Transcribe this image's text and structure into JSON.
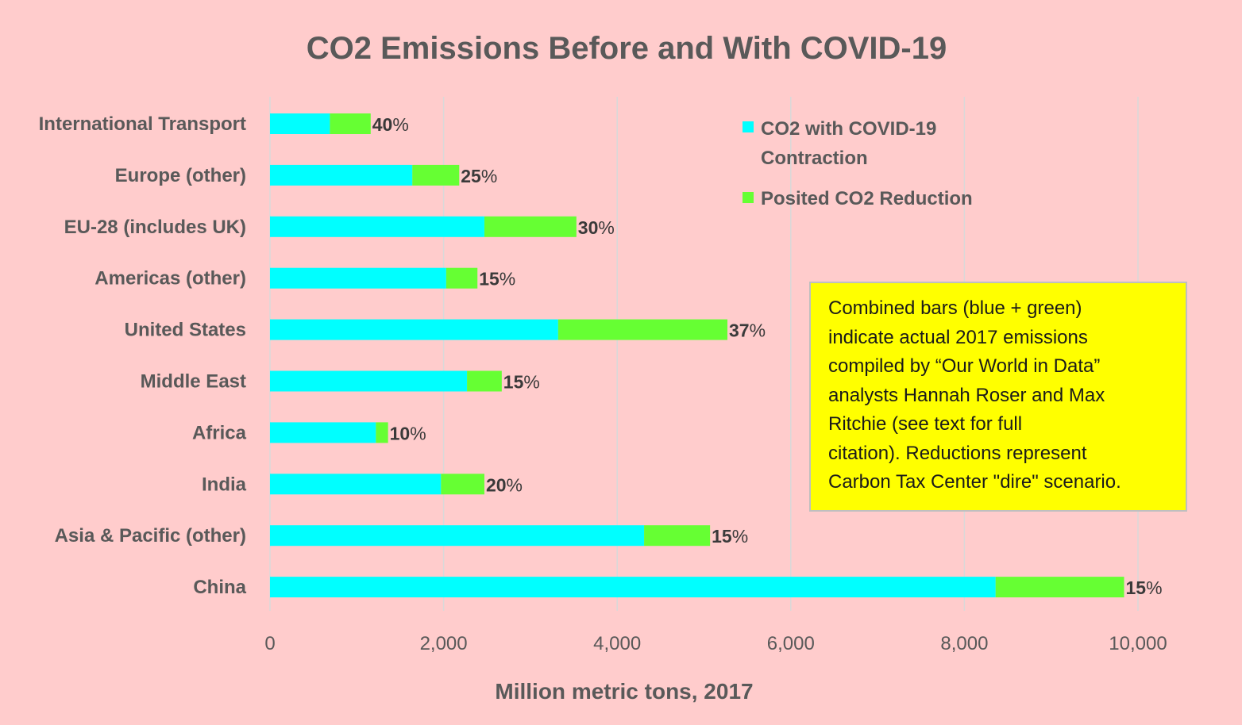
{
  "chart_data": {
    "type": "bar",
    "orientation": "horizontal",
    "stacked": true,
    "title": "CO2 Emissions Before and With COVID-19",
    "xlabel": "Million metric tons, 2017",
    "ylabel": "",
    "xlim": [
      0,
      10000
    ],
    "xticks": [
      0,
      2000,
      4000,
      6000,
      8000,
      10000
    ],
    "xtick_labels": [
      "0",
      "2,000",
      "4,000",
      "6,000",
      "8,000",
      "10,000"
    ],
    "grid": true,
    "legend_position": "top-right",
    "categories": [
      "International Transport",
      "Europe (other)",
      "EU-28 (includes UK)",
      "Americas (other)",
      "United States",
      "Middle East",
      "Africa",
      "India",
      "Asia & Pacific (other)",
      "China"
    ],
    "series": [
      {
        "name": "CO2 with COVID-19 Contraction",
        "color": "#00ffff",
        "values": [
          690,
          1640,
          2470,
          2030,
          3320,
          2270,
          1220,
          1970,
          4310,
          8360
        ]
      },
      {
        "name": "Posited CO2 Reduction",
        "color": "#66ff33",
        "values": [
          470,
          540,
          1060,
          360,
          1950,
          400,
          140,
          500,
          760,
          1480
        ]
      }
    ],
    "data_labels": [
      "40%",
      "25%",
      "30%",
      "15%",
      "37%",
      "15%",
      "10%",
      "20%",
      "15%",
      "15%"
    ]
  },
  "annotation": {
    "lines": [
      "Combined bars (blue + green)",
      "indicate actual 2017 emissions",
      "compiled by “Our World in Data”",
      "analysts Hannah Roser and Max",
      "Ritchie (see text for full",
      "citation). Reductions represent",
      "Carbon Tax Center \"dire\" scenario."
    ]
  }
}
